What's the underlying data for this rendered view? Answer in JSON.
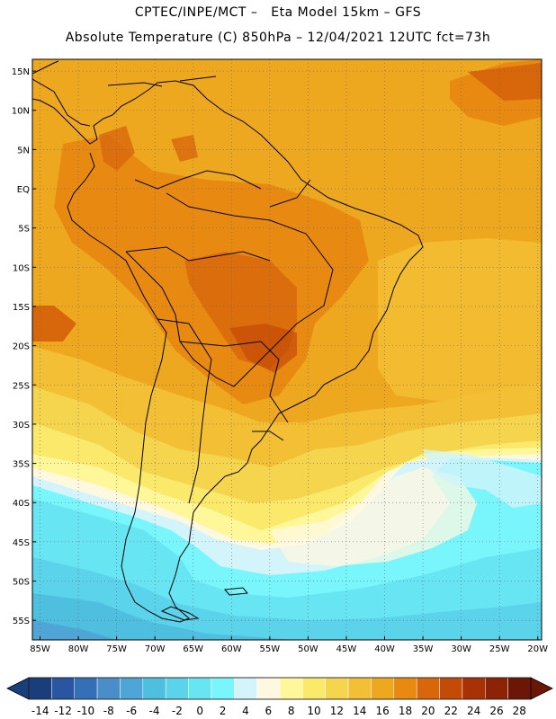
{
  "header": {
    "line1": "CPTEC/INPE/MCT –   Eta Model 15km – GFS",
    "line2": "Absolute Temperature (C) 850hPa – 12/04/2021 12UTC fct=73h"
  },
  "map": {
    "lat_labels": [
      "15N",
      "10N",
      "5N",
      "EQ",
      "5S",
      "10S",
      "15S",
      "20S",
      "25S",
      "30S",
      "35S",
      "40S",
      "45S",
      "50S",
      "55S"
    ],
    "lon_labels": [
      "85W",
      "80W",
      "75W",
      "70W",
      "65W",
      "60W",
      "55W",
      "50W",
      "45W",
      "40W",
      "35W",
      "30W",
      "25W",
      "20W"
    ],
    "lat_values": [
      15,
      10,
      5,
      0,
      -5,
      -10,
      -15,
      -20,
      -25,
      -30,
      -35,
      -40,
      -45,
      -50,
      -55
    ],
    "lon_values": [
      -85,
      -80,
      -75,
      -70,
      -65,
      -60,
      -55,
      -50,
      -45,
      -40,
      -35,
      -30,
      -25,
      -20
    ],
    "lat_range": [
      -57.5,
      16.5
    ],
    "lon_range": [
      -86.0,
      -19.5
    ]
  },
  "colorbar": {
    "labels": [
      "-14",
      "-12",
      "-10",
      "-8",
      "-6",
      "-4",
      "-2",
      "0",
      "2",
      "4",
      "6",
      "8",
      "10",
      "12",
      "14",
      "16",
      "18",
      "20",
      "22",
      "24",
      "26",
      "28"
    ],
    "colors": [
      "#1a3d7c",
      "#2a55a0",
      "#356fb8",
      "#4a8ec9",
      "#4fa6d6",
      "#4fbfe0",
      "#5bd3ea",
      "#67e5f2",
      "#79f6fc",
      "#d2f4fa",
      "#fff8e1",
      "#fff79a",
      "#fbe96c",
      "#f6d54e",
      "#f2bf35",
      "#eea81f",
      "#e88a12",
      "#d8670c",
      "#c44a08",
      "#a83205",
      "#8c2206",
      "#6c1606"
    ]
  }
}
